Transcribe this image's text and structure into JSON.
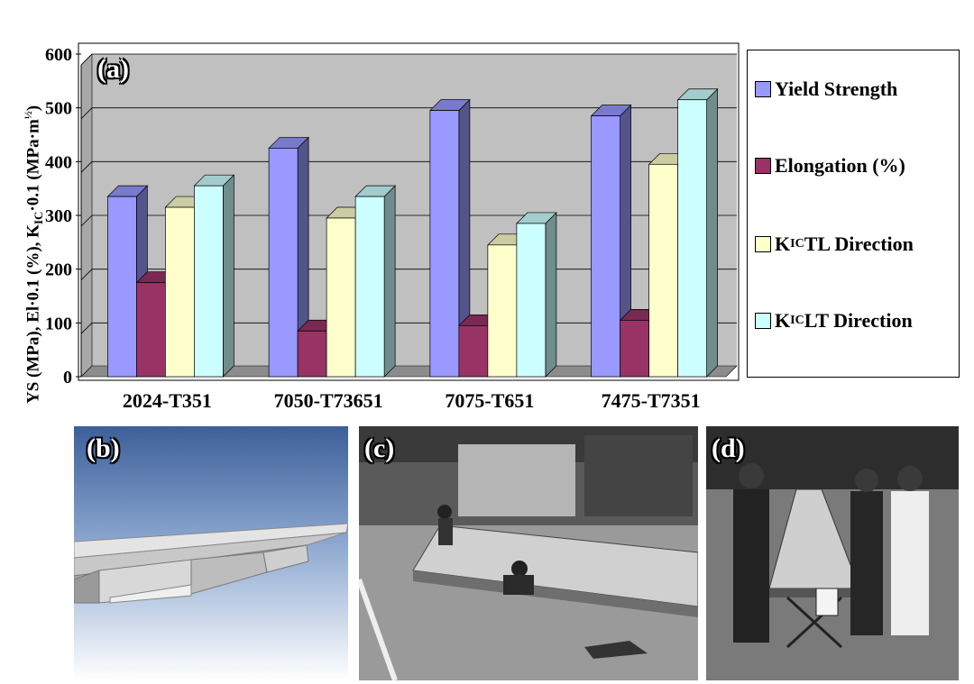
{
  "chart_data": {
    "type": "bar",
    "categories": [
      "2024-T351",
      "7050-T73651",
      "7075-T651",
      "7475-T7351"
    ],
    "series": [
      {
        "name": "Yield Strength",
        "values": [
          335,
          425,
          495,
          485
        ],
        "color": "#9999ff"
      },
      {
        "name": "Elongation (%)",
        "values": [
          175,
          85,
          95,
          105
        ],
        "color": "#993366"
      },
      {
        "name": "KIC TL Direction",
        "values": [
          315,
          295,
          245,
          395
        ],
        "color": "#ffffcc"
      },
      {
        "name": "KIC LT Direction",
        "values": [
          355,
          335,
          285,
          515
        ],
        "color": "#ccffff"
      }
    ],
    "ylim": [
      0,
      600
    ],
    "yticks": [
      "0",
      "100",
      "200",
      "300",
      "400",
      "500",
      "600"
    ],
    "ylabel": "YS (MPa), El·0.1 (%), KIC·0.1 (MPa·m½)",
    "grid": true,
    "legend_placement": "right",
    "panel_label": "(a)"
  },
  "legend": {
    "items": [
      {
        "text": "Yield Strength",
        "sub": "",
        "rest": ""
      },
      {
        "text": "Elongation (%)",
        "sub": "",
        "rest": ""
      },
      {
        "text": "K",
        "sub": "IC",
        "rest": " TL Direction"
      },
      {
        "text": "K",
        "sub": "IC",
        "rest": " LT Direction"
      }
    ]
  },
  "ylabel_parts": {
    "prefix": "YS (MPa), El·0.1 (%), K",
    "sub": "IC",
    "mid": "·0.1 (MPa·m",
    "sup": "½",
    "suffix": ")"
  },
  "panels": {
    "b": "(b)",
    "c": "(c)",
    "d": "(d)"
  },
  "colors": {
    "plot_bg": "#c0c0c0",
    "sky_top": "#3d5f99",
    "sky_bottom": "#ffffff"
  }
}
